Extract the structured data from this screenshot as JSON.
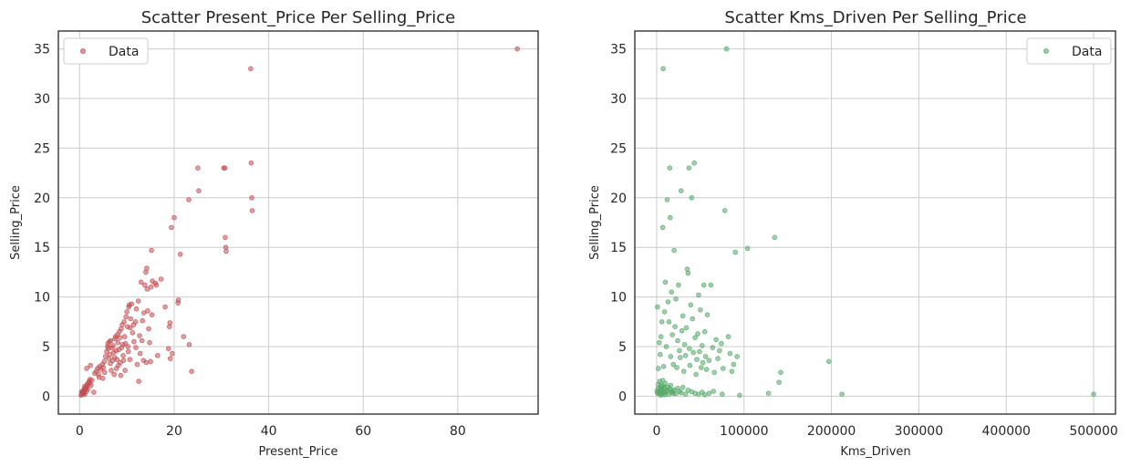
{
  "chart_data": [
    {
      "type": "scatter",
      "title": "Scatter Present_Price Per Selling_Price",
      "xlabel": "Present_Price",
      "ylabel": "Selling_Price",
      "xlim": [
        -4.5,
        97
      ],
      "ylim": [
        -1.8,
        36.8
      ],
      "xticks": [
        0,
        20,
        40,
        60,
        80
      ],
      "yticks": [
        0,
        5,
        10,
        15,
        20,
        25,
        30,
        35
      ],
      "grid": true,
      "legend": {
        "label": "Data",
        "position": "top-left"
      },
      "color": "#c44e52",
      "points": [
        [
          0.3,
          0.1
        ],
        [
          0.5,
          0.2
        ],
        [
          0.6,
          0.3
        ],
        [
          0.7,
          0.4
        ],
        [
          0.8,
          0.5
        ],
        [
          0.9,
          0.3
        ],
        [
          1.0,
          0.6
        ],
        [
          1.1,
          0.2
        ],
        [
          1.2,
          0.8
        ],
        [
          1.3,
          0.9
        ],
        [
          0.4,
          0.45
        ],
        [
          0.55,
          0.35
        ],
        [
          0.75,
          0.25
        ],
        [
          0.85,
          0.6
        ],
        [
          0.95,
          0.7
        ],
        [
          1.05,
          1.0
        ],
        [
          1.5,
          0.9
        ],
        [
          1.6,
          1.2
        ],
        [
          1.8,
          1.3
        ],
        [
          2.0,
          1.5
        ],
        [
          2.2,
          1.7
        ],
        [
          2.4,
          1.1
        ],
        [
          1.4,
          0.5
        ],
        [
          1.7,
          0.7
        ],
        [
          2.1,
          1.3
        ],
        [
          2.6,
          1.6
        ],
        [
          3.0,
          0.4
        ],
        [
          3.5,
          2.5
        ],
        [
          3.8,
          2.8
        ],
        [
          4.0,
          2.2
        ],
        [
          4.2,
          3.0
        ],
        [
          4.5,
          2.7
        ],
        [
          4.8,
          3.2
        ],
        [
          5.0,
          2.9
        ],
        [
          5.2,
          3.5
        ],
        [
          5.5,
          4.0
        ],
        [
          5.7,
          4.5
        ],
        [
          5.9,
          5.0
        ],
        [
          6.0,
          5.3
        ],
        [
          6.1,
          4.8
        ],
        [
          6.2,
          3.8
        ],
        [
          6.3,
          5.5
        ],
        [
          6.4,
          4.2
        ],
        [
          6.5,
          3.3
        ],
        [
          6.6,
          5.6
        ],
        [
          6.8,
          4.9
        ],
        [
          7.0,
          3.6
        ],
        [
          7.1,
          5.1
        ],
        [
          7.2,
          4.4
        ],
        [
          7.4,
          3.9
        ],
        [
          7.5,
          5.8
        ],
        [
          7.6,
          6.0
        ],
        [
          7.7,
          4.6
        ],
        [
          7.8,
          2.8
        ],
        [
          8.0,
          6.2
        ],
        [
          8.1,
          5.4
        ],
        [
          8.2,
          3.1
        ],
        [
          8.3,
          4.7
        ],
        [
          8.4,
          6.5
        ],
        [
          8.5,
          5.9
        ],
        [
          8.6,
          3.4
        ],
        [
          8.7,
          2.1
        ],
        [
          8.8,
          6.8
        ],
        [
          9.0,
          7.2
        ],
        [
          9.1,
          5.2
        ],
        [
          9.2,
          4.1
        ],
        [
          9.4,
          7.5
        ],
        [
          9.5,
          6.0
        ],
        [
          9.6,
          2.6
        ],
        [
          9.8,
          8.0
        ],
        [
          10.0,
          8.5
        ],
        [
          10.1,
          7.0
        ],
        [
          10.2,
          5.0
        ],
        [
          10.3,
          4.5
        ],
        [
          10.4,
          9.0
        ],
        [
          10.5,
          9.2
        ],
        [
          10.6,
          3.7
        ],
        [
          10.8,
          7.8
        ],
        [
          11.0,
          9.3
        ],
        [
          11.2,
          6.4
        ],
        [
          11.5,
          5.5
        ],
        [
          11.8,
          7.5
        ],
        [
          12.0,
          8.8
        ],
        [
          12.2,
          3.2
        ],
        [
          12.4,
          9.6
        ],
        [
          12.5,
          1.5
        ],
        [
          12.8,
          4.3
        ],
        [
          13.0,
          11.5
        ],
        [
          13.2,
          5.6
        ],
        [
          13.5,
          3.6
        ],
        [
          13.6,
          8.4
        ],
        [
          13.8,
          11.2
        ],
        [
          14.0,
          12.5
        ],
        [
          14.2,
          12.9
        ],
        [
          14.3,
          10.8
        ],
        [
          14.4,
          8.6
        ],
        [
          14.6,
          6.8
        ],
        [
          14.8,
          5.4
        ],
        [
          15.0,
          3.5
        ],
        [
          15.1,
          11.0
        ],
        [
          15.2,
          14.7
        ],
        [
          15.4,
          11.6
        ],
        [
          16.0,
          11.4
        ],
        [
          16.2,
          11.2
        ],
        [
          18.8,
          4.8
        ],
        [
          19.0,
          7.0
        ],
        [
          19.1,
          7.4
        ],
        [
          19.2,
          3.8
        ],
        [
          19.4,
          17.0
        ],
        [
          20.0,
          18.0
        ],
        [
          20.8,
          9.4
        ],
        [
          20.9,
          9.7
        ],
        [
          21.3,
          14.3
        ],
        [
          23.1,
          19.8
        ],
        [
          23.2,
          5.2
        ],
        [
          23.7,
          2.5
        ],
        [
          25.0,
          23.0
        ],
        [
          25.2,
          20.7
        ],
        [
          30.5,
          23.0
        ],
        [
          30.7,
          23.0
        ],
        [
          30.8,
          16.0
        ],
        [
          30.9,
          15.0
        ],
        [
          31.0,
          14.6
        ],
        [
          36.2,
          33.0
        ],
        [
          36.3,
          23.5
        ],
        [
          36.4,
          20.0
        ],
        [
          36.5,
          18.7
        ],
        [
          92.6,
          35.0
        ],
        [
          1.5,
          2.8
        ],
        [
          2.3,
          3.1
        ],
        [
          3.2,
          2.3
        ],
        [
          4.1,
          1.9
        ],
        [
          4.9,
          1.8
        ],
        [
          5.3,
          2.4
        ],
        [
          6.7,
          2.6
        ],
        [
          7.3,
          2.2
        ],
        [
          7.9,
          3.7
        ],
        [
          8.9,
          4.9
        ],
        [
          9.3,
          3.6
        ],
        [
          9.7,
          5.3
        ],
        [
          10.7,
          6.9
        ],
        [
          11.4,
          7.2
        ],
        [
          11.9,
          4.9
        ],
        [
          12.7,
          6.1
        ],
        [
          13.3,
          7.6
        ],
        [
          14.1,
          3.4
        ],
        [
          15.3,
          8.2
        ],
        [
          16.5,
          4.1
        ],
        [
          17.2,
          11.8
        ],
        [
          18.1,
          9.0
        ],
        [
          19.6,
          4.3
        ],
        [
          22.0,
          6.0
        ]
      ]
    },
    {
      "type": "scatter",
      "title": "Scatter Kms_Driven Per Selling_Price",
      "xlabel": "Kms_Driven",
      "ylabel": "Selling_Price",
      "xlim": [
        -25000,
        525000
      ],
      "ylim": [
        -1.8,
        36.8
      ],
      "xticks": [
        0,
        100000,
        200000,
        300000,
        400000,
        500000
      ],
      "yticks": [
        0,
        5,
        10,
        15,
        20,
        25,
        30,
        35
      ],
      "grid": true,
      "legend": {
        "label": "Data",
        "position": "top-right"
      },
      "color": "#55a868",
      "points": [
        [
          500,
          0.5
        ],
        [
          1000,
          0.3
        ],
        [
          1500,
          0.8
        ],
        [
          2000,
          1.2
        ],
        [
          2500,
          0.4
        ],
        [
          3000,
          0.2
        ],
        [
          3500,
          1.5
        ],
        [
          4000,
          0.6
        ],
        [
          4500,
          0.9
        ],
        [
          5000,
          0.1
        ],
        [
          5500,
          1.1
        ],
        [
          6000,
          0.7
        ],
        [
          6500,
          0.25
        ],
        [
          7000,
          1.6
        ],
        [
          7500,
          0.5
        ],
        [
          8000,
          1.0
        ],
        [
          8500,
          0.35
        ],
        [
          9000,
          0.8
        ],
        [
          9500,
          0.15
        ],
        [
          10000,
          1.3
        ],
        [
          11000,
          0.45
        ],
        [
          12000,
          0.6
        ],
        [
          13000,
          0.9
        ],
        [
          14000,
          0.2
        ],
        [
          15000,
          0.75
        ],
        [
          16000,
          1.1
        ],
        [
          17000,
          0.4
        ],
        [
          18000,
          0.55
        ],
        [
          19000,
          0.3
        ],
        [
          20000,
          0.65
        ],
        [
          22000,
          0.25
        ],
        [
          24000,
          0.8
        ],
        [
          26000,
          0.5
        ],
        [
          28000,
          0.35
        ],
        [
          30000,
          0.9
        ],
        [
          33000,
          0.2
        ],
        [
          36000,
          0.6
        ],
        [
          40000,
          0.45
        ],
        [
          44000,
          0.3
        ],
        [
          48000,
          0.2
        ],
        [
          52000,
          0.4
        ],
        [
          55000,
          0.15
        ],
        [
          60000,
          0.3
        ],
        [
          65000,
          0.5
        ],
        [
          75000,
          0.2
        ],
        [
          95000,
          0.1
        ],
        [
          128000,
          0.3
        ],
        [
          212000,
          0.2
        ],
        [
          500000,
          0.2
        ],
        [
          1000,
          9.0
        ],
        [
          2000,
          2.8
        ],
        [
          3000,
          5.4
        ],
        [
          4000,
          4.2
        ],
        [
          5000,
          6.0
        ],
        [
          6000,
          7.5
        ],
        [
          7000,
          17.0
        ],
        [
          7500,
          33.0
        ],
        [
          8000,
          3.0
        ],
        [
          9000,
          8.5
        ],
        [
          10000,
          11.5
        ],
        [
          11000,
          5.0
        ],
        [
          12000,
          19.8
        ],
        [
          13000,
          9.5
        ],
        [
          14000,
          7.5
        ],
        [
          15000,
          23.0
        ],
        [
          15500,
          18.0
        ],
        [
          16000,
          4.0
        ],
        [
          17000,
          10.5
        ],
        [
          18000,
          6.2
        ],
        [
          19000,
          3.2
        ],
        [
          20000,
          14.7
        ],
        [
          21000,
          7.0
        ],
        [
          22000,
          9.8
        ],
        [
          23000,
          2.9
        ],
        [
          24000,
          5.6
        ],
        [
          25000,
          11.2
        ],
        [
          26000,
          4.6
        ],
        [
          27000,
          3.9
        ],
        [
          28000,
          20.7
        ],
        [
          29000,
          6.6
        ],
        [
          30000,
          8.1
        ],
        [
          31000,
          2.5
        ],
        [
          32000,
          5.2
        ],
        [
          33000,
          4.1
        ],
        [
          34000,
          6.9
        ],
        [
          35000,
          12.8
        ],
        [
          36000,
          12.4
        ],
        [
          37000,
          23.0
        ],
        [
          37500,
          4.8
        ],
        [
          38000,
          3.1
        ],
        [
          39000,
          9.2
        ],
        [
          40000,
          20.0
        ],
        [
          41000,
          7.8
        ],
        [
          42000,
          4.4
        ],
        [
          43000,
          23.5
        ],
        [
          44000,
          5.9
        ],
        [
          45000,
          2.2
        ],
        [
          46000,
          3.7
        ],
        [
          47000,
          6.3
        ],
        [
          48000,
          10.2
        ],
        [
          49000,
          4.5
        ],
        [
          50000,
          8.7
        ],
        [
          51000,
          2.9
        ],
        [
          52000,
          5.1
        ],
        [
          53000,
          3.4
        ],
        [
          54000,
          11.2
        ],
        [
          55000,
          6.5
        ],
        [
          56000,
          4.0
        ],
        [
          57000,
          2.7
        ],
        [
          58000,
          8.2
        ],
        [
          60000,
          3.6
        ],
        [
          62000,
          11.2
        ],
        [
          64000,
          4.9
        ],
        [
          66000,
          2.4
        ],
        [
          68000,
          5.7
        ],
        [
          70000,
          3.8
        ],
        [
          72000,
          4.6
        ],
        [
          74000,
          5.3
        ],
        [
          76000,
          2.8
        ],
        [
          78000,
          18.7
        ],
        [
          80000,
          35.0
        ],
        [
          82000,
          6.0
        ],
        [
          84000,
          4.3
        ],
        [
          86000,
          2.5
        ],
        [
          88000,
          3.2
        ],
        [
          90000,
          14.5
        ],
        [
          92000,
          4.0
        ],
        [
          104000,
          14.9
        ],
        [
          135000,
          16.0
        ],
        [
          140000,
          1.4
        ],
        [
          142000,
          2.4
        ],
        [
          197000,
          3.5
        ]
      ]
    }
  ]
}
